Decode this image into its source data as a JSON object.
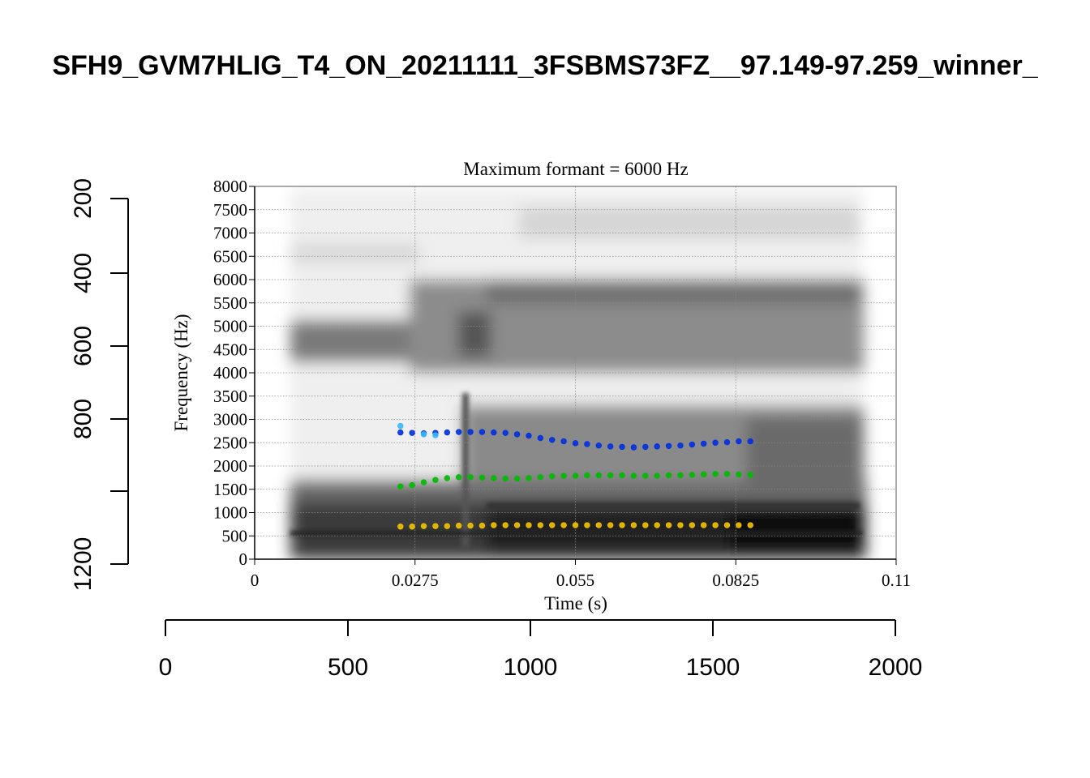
{
  "page": {
    "title": "SFH9_GVM7HLIG_T4_ON_20211111_3FSBMS73FZ__97.149-97.259_winner_"
  },
  "outer_axes": {
    "left_ticks": [
      "200",
      "400",
      "600",
      "800",
      "1200"
    ],
    "bottom_ticks": [
      "0",
      "500",
      "1000",
      "1500",
      "2000"
    ]
  },
  "chart_data": {
    "type": "scatter",
    "title": "Maximum formant  =  6000 Hz",
    "xlabel": "Time (s)",
    "ylabel": "Frequency (Hz)",
    "xlim": [
      0,
      0.11
    ],
    "ylim": [
      0,
      8000
    ],
    "x_ticks": [
      "0",
      "0.0275",
      "0.055",
      "0.0825",
      "0.11"
    ],
    "y_ticks": [
      "0",
      "500",
      "1000",
      "1500",
      "2000",
      "2500",
      "3000",
      "3500",
      "4000",
      "4500",
      "5000",
      "5500",
      "6000",
      "6500",
      "7000",
      "7500",
      "8000"
    ],
    "grid": true,
    "background": "grayscale spectrogram",
    "series": [
      {
        "color": "#0030e0",
        "x": [
          0.025,
          0.027,
          0.029,
          0.031,
          0.033,
          0.035,
          0.037,
          0.039,
          0.041,
          0.043,
          0.045,
          0.047,
          0.049,
          0.051,
          0.053,
          0.055,
          0.057,
          0.059,
          0.061,
          0.063,
          0.065,
          0.067,
          0.069,
          0.071,
          0.073,
          0.075,
          0.077,
          0.079,
          0.081,
          0.083,
          0.085
        ],
        "values": [
          2720,
          2710,
          2700,
          2710,
          2720,
          2730,
          2730,
          2730,
          2720,
          2710,
          2680,
          2650,
          2600,
          2560,
          2530,
          2490,
          2470,
          2440,
          2420,
          2410,
          2400,
          2410,
          2420,
          2430,
          2440,
          2460,
          2480,
          2500,
          2510,
          2530,
          2530
        ]
      },
      {
        "color": "#00bb00",
        "x": [
          0.025,
          0.027,
          0.029,
          0.031,
          0.033,
          0.035,
          0.037,
          0.039,
          0.041,
          0.043,
          0.045,
          0.047,
          0.049,
          0.051,
          0.053,
          0.055,
          0.057,
          0.059,
          0.061,
          0.063,
          0.065,
          0.067,
          0.069,
          0.071,
          0.073,
          0.075,
          0.077,
          0.079,
          0.081,
          0.083,
          0.085
        ],
        "values": [
          1560,
          1590,
          1650,
          1700,
          1740,
          1760,
          1760,
          1750,
          1740,
          1730,
          1730,
          1740,
          1760,
          1780,
          1790,
          1790,
          1800,
          1800,
          1800,
          1800,
          1790,
          1790,
          1790,
          1800,
          1800,
          1810,
          1820,
          1830,
          1830,
          1820,
          1810
        ]
      },
      {
        "color": "#f2c300",
        "x": [
          0.025,
          0.027,
          0.029,
          0.031,
          0.033,
          0.035,
          0.037,
          0.039,
          0.041,
          0.043,
          0.045,
          0.047,
          0.049,
          0.051,
          0.053,
          0.055,
          0.057,
          0.059,
          0.061,
          0.063,
          0.065,
          0.067,
          0.069,
          0.071,
          0.073,
          0.075,
          0.077,
          0.079,
          0.081,
          0.083,
          0.085
        ],
        "values": [
          700,
          700,
          710,
          710,
          710,
          720,
          720,
          720,
          730,
          730,
          730,
          730,
          730,
          730,
          730,
          730,
          730,
          730,
          730,
          730,
          730,
          730,
          730,
          730,
          730,
          730,
          730,
          730,
          730,
          730,
          730
        ]
      },
      {
        "color": "#35b8ff",
        "x": [
          0.025,
          0.029,
          0.031
        ],
        "values": [
          2860,
          2680,
          2660
        ]
      }
    ]
  }
}
